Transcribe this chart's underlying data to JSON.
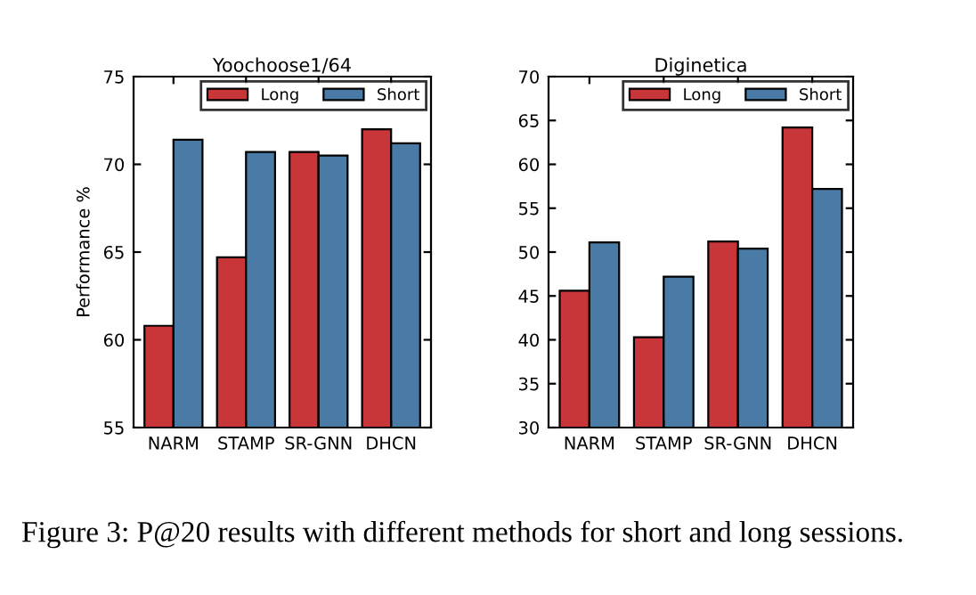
{
  "chart_data": [
    {
      "type": "bar",
      "title": "Yoochoose1/64",
      "ylabel": "Performance %",
      "categories": [
        "NARM",
        "STAMP",
        "SR-GNN",
        "DHCN"
      ],
      "series": [
        {
          "name": "Long",
          "color": "#c8363a",
          "values": [
            60.8,
            64.7,
            70.7,
            72.0
          ]
        },
        {
          "name": "Short",
          "color": "#4a7ba7",
          "values": [
            71.4,
            70.7,
            70.5,
            71.2
          ]
        }
      ],
      "ylim": [
        55,
        75
      ],
      "yticks": [
        55,
        60,
        65,
        70,
        75
      ],
      "grid": false,
      "legend": "top right",
      "annotations": [
        "Figure 3: P@20 results with different methods for short and long sessions."
      ]
    },
    {
      "type": "bar",
      "title": "Diginetica",
      "categories": [
        "NARM",
        "STAMP",
        "SR-GNN",
        "DHCN"
      ],
      "series": [
        {
          "name": "Long",
          "color": "#c8363a",
          "values": [
            45.6,
            40.3,
            51.2,
            64.2
          ]
        },
        {
          "name": "Short",
          "color": "#4a7ba7",
          "values": [
            51.1,
            47.2,
            50.4,
            57.2
          ]
        }
      ],
      "ylim": [
        30,
        70
      ],
      "yticks": [
        30,
        35,
        40,
        45,
        50,
        55,
        60,
        65,
        70
      ],
      "grid": false,
      "legend": "top right"
    }
  ]
}
